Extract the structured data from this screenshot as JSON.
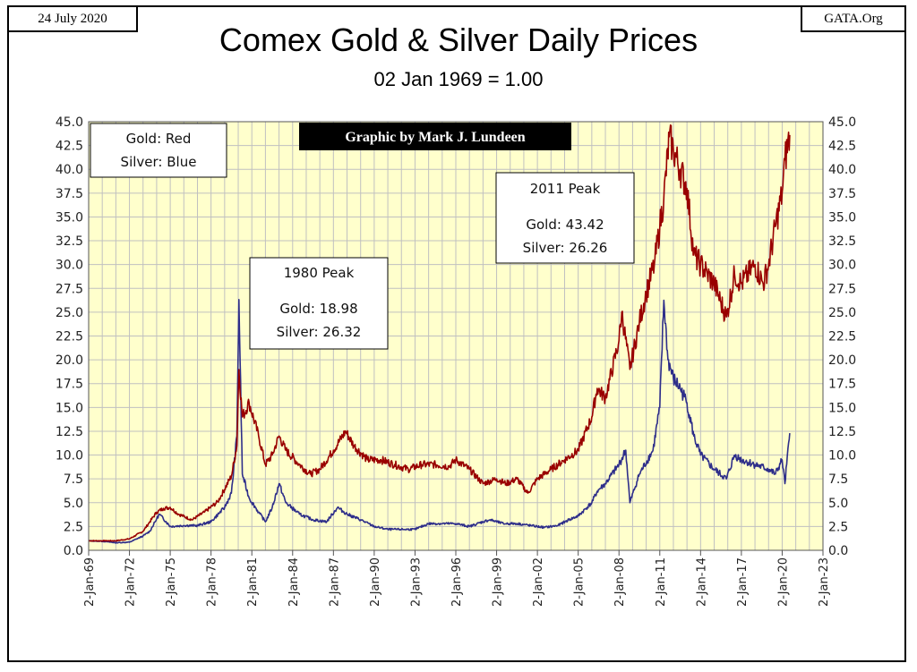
{
  "header": {
    "date": "24 July 2020",
    "site": "GATA.Org",
    "title": "Comex Gold & Silver Daily Prices",
    "subtitle": "02 Jan 1969 = 1.00"
  },
  "legend": {
    "gold": "Gold: Red",
    "silver": "Silver: Blue"
  },
  "credit": "Graphic by Mark J. Lundeen",
  "annotations": {
    "peak1980": {
      "title": "1980 Peak",
      "gold": "Gold:  18.98",
      "silver": "Silver: 26.32"
    },
    "peak2011": {
      "title": "2011 Peak",
      "gold": "Gold:  43.42",
      "silver": "Silver: 26.26"
    }
  },
  "colors": {
    "gold": "#990000",
    "silver": "#2e2e8a",
    "plot_bg": "#ffffcc",
    "grid": "#c0c0c0"
  },
  "chart_data": {
    "type": "line",
    "ylim": [
      0,
      45
    ],
    "xlim": [
      1969.0,
      2023.0
    ],
    "y_ticks": [
      "0.0",
      "2.5",
      "5.0",
      "7.5",
      "10.0",
      "12.5",
      "15.0",
      "17.5",
      "20.0",
      "22.5",
      "25.0",
      "27.5",
      "30.0",
      "32.5",
      "35.0",
      "37.5",
      "40.0",
      "42.5",
      "45.0"
    ],
    "x_ticks": [
      "2-Jan-69",
      "2-Jan-72",
      "2-Jan-75",
      "2-Jan-78",
      "2-Jan-81",
      "2-Jan-84",
      "2-Jan-87",
      "2-Jan-90",
      "2-Jan-93",
      "2-Jan-96",
      "2-Jan-99",
      "2-Jan-02",
      "2-Jan-05",
      "2-Jan-08",
      "2-Jan-11",
      "2-Jan-14",
      "2-Jan-17",
      "2-Jan-20",
      "2-Jan-23"
    ],
    "grid": true,
    "legend_position": "top-left",
    "series": [
      {
        "name": "Gold",
        "color": "#990000",
        "x": [
          1969.0,
          1970.0,
          1971.0,
          1972.0,
          1973.0,
          1973.5,
          1974.0,
          1974.5,
          1975.0,
          1975.6,
          1976.6,
          1977.5,
          1978.5,
          1979.5,
          1979.9,
          1980.05,
          1980.3,
          1980.8,
          1981.5,
          1982.0,
          1982.5,
          1983.0,
          1983.5,
          1984.5,
          1985.3,
          1986.0,
          1987.0,
          1987.9,
          1988.5,
          1989.5,
          1990.5,
          1991.5,
          1992.5,
          1993.5,
          1994.5,
          1995.5,
          1996.0,
          1997.0,
          1998.0,
          1999.0,
          1999.7,
          2000.5,
          2001.3,
          2002.0,
          2003.0,
          2004.0,
          2005.0,
          2006.0,
          2006.4,
          2007.0,
          2008.0,
          2008.2,
          2008.8,
          2009.5,
          2010.0,
          2010.6,
          2011.0,
          2011.3,
          2011.7,
          2012.0,
          2012.5,
          2013.0,
          2013.5,
          2014.0,
          2014.5,
          2015.0,
          2015.5,
          2015.9,
          2016.5,
          2017.0,
          2018.0,
          2018.6,
          2019.0,
          2019.5,
          2020.0,
          2020.2,
          2020.56
        ],
        "y": [
          1.0,
          1.0,
          1.0,
          1.2,
          2.0,
          3.0,
          4.0,
          4.4,
          4.5,
          3.8,
          3.2,
          4.0,
          5.1,
          7.8,
          11.0,
          18.98,
          14.0,
          15.5,
          12.0,
          9.0,
          10.0,
          12.0,
          10.5,
          9.0,
          8.0,
          8.5,
          10.5,
          12.5,
          11.0,
          9.5,
          9.5,
          9.0,
          8.5,
          9.0,
          9.0,
          8.8,
          9.5,
          8.5,
          7.0,
          7.5,
          7.0,
          7.5,
          6.0,
          7.5,
          8.5,
          9.5,
          10.5,
          14.0,
          17.0,
          16.0,
          22.0,
          25.0,
          19.0,
          24.0,
          27.0,
          30.0,
          34.0,
          37.0,
          43.42,
          42.0,
          40.0,
          38.0,
          31.0,
          30.0,
          29.0,
          28.0,
          26.0,
          24.5,
          29.0,
          28.0,
          30.0,
          28.0,
          30.0,
          34.0,
          37.5,
          41.0,
          43.6
        ]
      },
      {
        "name": "Silver",
        "color": "#2e2e8a",
        "x": [
          1969.0,
          1970.0,
          1971.0,
          1972.0,
          1973.0,
          1973.5,
          1974.0,
          1974.2,
          1975.0,
          1976.0,
          1977.0,
          1978.0,
          1979.0,
          1979.5,
          1979.9,
          1980.05,
          1980.3,
          1980.8,
          1981.5,
          1982.0,
          1982.5,
          1983.0,
          1983.5,
          1984.5,
          1985.5,
          1986.5,
          1987.3,
          1988.0,
          1989.0,
          1990.0,
          1991.0,
          1992.0,
          1993.0,
          1994.0,
          1995.0,
          1996.0,
          1997.0,
          1998.0,
          1998.5,
          1999.5,
          2000.5,
          2001.5,
          2002.5,
          2003.5,
          2004.3,
          2005.0,
          2006.0,
          2006.4,
          2007.0,
          2008.0,
          2008.5,
          2008.8,
          2009.5,
          2010.5,
          2011.0,
          2011.3,
          2011.6,
          2012.0,
          2012.5,
          2013.0,
          2013.5,
          2014.0,
          2015.0,
          2015.9,
          2016.5,
          2017.0,
          2018.0,
          2019.0,
          2019.5,
          2020.0,
          2020.2,
          2020.56
        ],
        "y": [
          1.0,
          0.95,
          0.8,
          0.85,
          1.5,
          2.0,
          3.3,
          3.8,
          2.5,
          2.6,
          2.6,
          3.0,
          4.5,
          6.0,
          12.0,
          26.32,
          8.0,
          5.5,
          4.0,
          3.0,
          4.5,
          7.0,
          5.0,
          3.8,
          3.2,
          3.0,
          4.5,
          3.8,
          3.2,
          2.5,
          2.2,
          2.2,
          2.2,
          2.8,
          2.8,
          2.8,
          2.5,
          3.0,
          3.2,
          2.8,
          2.8,
          2.6,
          2.4,
          2.6,
          3.2,
          3.6,
          5.0,
          6.2,
          7.0,
          9.0,
          10.5,
          5.0,
          8.0,
          10.5,
          15.0,
          26.26,
          20.0,
          18.0,
          17.0,
          15.5,
          12.0,
          10.0,
          8.5,
          7.5,
          10.0,
          9.5,
          9.0,
          8.5,
          8.0,
          9.5,
          7.0,
          12.3
        ]
      }
    ]
  }
}
